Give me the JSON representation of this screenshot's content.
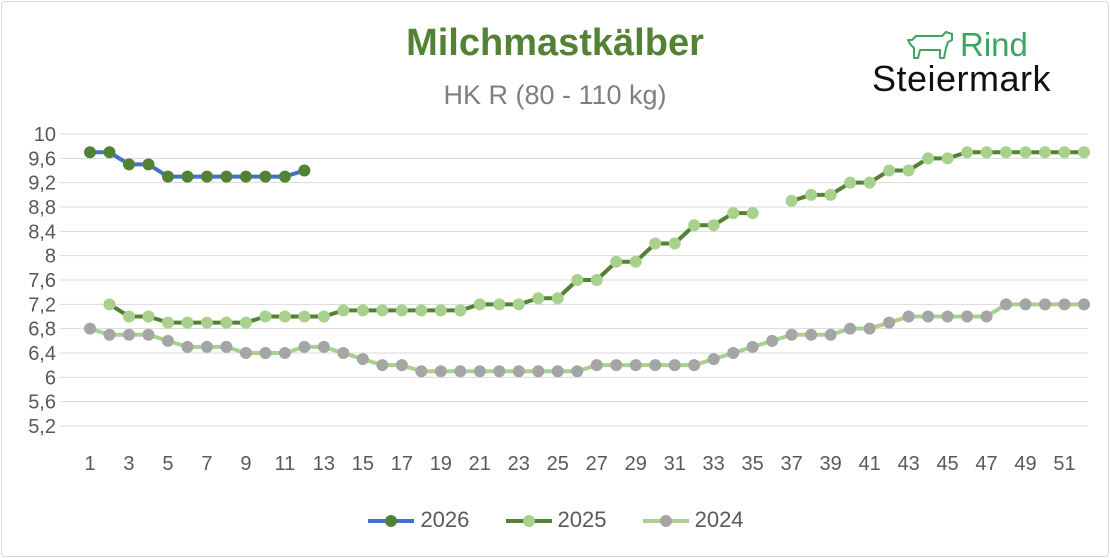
{
  "title": "Milchmastkälber",
  "subtitle": "HK R (80 - 110 kg)",
  "logo": {
    "word1": "Rind",
    "word2": "Steiermark"
  },
  "colors": {
    "s2026_line": "#4472c4",
    "s2026_marker": "#548235",
    "s2025": "#548235",
    "s2025_marker": "#a9d18e",
    "s2024": "#a9d18e",
    "s2024_marker": "#a5a5a5"
  },
  "chart_data": {
    "type": "line",
    "title": "Milchmastkälber",
    "subtitle": "HK R (80 - 110 kg)",
    "ylim": [
      5.2,
      10
    ],
    "yticks": [
      "10",
      "9,6",
      "9,2",
      "8,8",
      "8,4",
      "8",
      "7,6",
      "7,2",
      "6,8",
      "6,4",
      "6",
      "5,6",
      "5,2"
    ],
    "xticks": [
      "1",
      "3",
      "5",
      "7",
      "9",
      "11",
      "13",
      "15",
      "17",
      "19",
      "21",
      "23",
      "25",
      "27",
      "29",
      "31",
      "33",
      "35",
      "37",
      "39",
      "41",
      "43",
      "45",
      "47",
      "49",
      "51"
    ],
    "xlim": [
      1,
      52
    ],
    "grid": true,
    "legend_position": "bottom",
    "series": [
      {
        "name": "2026",
        "x": [
          1,
          2,
          3,
          4,
          5,
          6,
          7,
          8,
          9,
          10,
          11,
          12
        ],
        "y": [
          9.7,
          9.7,
          9.5,
          9.5,
          9.3,
          9.3,
          9.3,
          9.3,
          9.3,
          9.3,
          9.3,
          9.4
        ]
      },
      {
        "name": "2025",
        "x": [
          2,
          3,
          4,
          5,
          6,
          7,
          8,
          9,
          10,
          11,
          12,
          13,
          14,
          15,
          16,
          17,
          18,
          19,
          20,
          21,
          22,
          23,
          24,
          25,
          26,
          27,
          28,
          29,
          30,
          31,
          32,
          33,
          34,
          35,
          37,
          38,
          39,
          40,
          41,
          42,
          43,
          44,
          45,
          46,
          47,
          48,
          49,
          50,
          51,
          52
        ],
        "y": [
          7.2,
          7.0,
          7.0,
          6.9,
          6.9,
          6.9,
          6.9,
          6.9,
          7.0,
          7.0,
          7.0,
          7.0,
          7.1,
          7.1,
          7.1,
          7.1,
          7.1,
          7.1,
          7.1,
          7.2,
          7.2,
          7.2,
          7.3,
          7.3,
          7.6,
          7.6,
          7.9,
          7.9,
          8.2,
          8.2,
          8.5,
          8.5,
          8.7,
          8.7,
          8.9,
          9.0,
          9.0,
          9.2,
          9.2,
          9.4,
          9.4,
          9.6,
          9.6,
          9.7,
          9.7,
          9.7,
          9.7,
          9.7,
          9.7,
          9.7
        ]
      },
      {
        "name": "2024",
        "x": [
          1,
          2,
          3,
          4,
          5,
          6,
          7,
          8,
          9,
          10,
          11,
          12,
          13,
          14,
          15,
          16,
          17,
          18,
          19,
          20,
          21,
          22,
          23,
          24,
          25,
          26,
          27,
          28,
          29,
          30,
          31,
          32,
          33,
          34,
          35,
          36,
          37,
          38,
          39,
          40,
          41,
          42,
          43,
          44,
          45,
          46,
          47,
          48,
          49,
          50,
          51,
          52
        ],
        "y": [
          6.8,
          6.7,
          6.7,
          6.7,
          6.6,
          6.5,
          6.5,
          6.5,
          6.4,
          6.4,
          6.4,
          6.5,
          6.5,
          6.4,
          6.3,
          6.2,
          6.2,
          6.1,
          6.1,
          6.1,
          6.1,
          6.1,
          6.1,
          6.1,
          6.1,
          6.1,
          6.2,
          6.2,
          6.2,
          6.2,
          6.2,
          6.2,
          6.3,
          6.4,
          6.5,
          6.6,
          6.7,
          6.7,
          6.7,
          6.8,
          6.8,
          6.9,
          7.0,
          7.0,
          7.0,
          7.0,
          7.0,
          7.2,
          7.2,
          7.2,
          7.2,
          7.2
        ]
      }
    ]
  }
}
